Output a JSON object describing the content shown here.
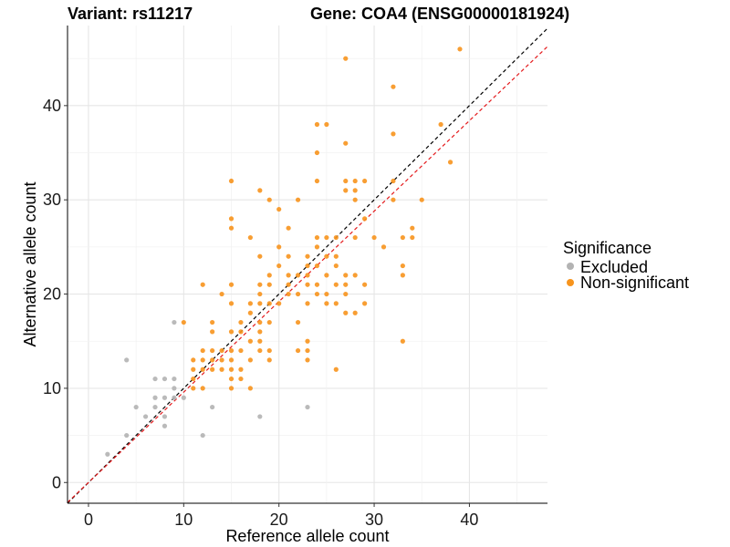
{
  "chart_data": {
    "type": "scatter",
    "title_left": "Variant: rs11217",
    "title_right": "Gene: COA4 (ENSG00000181924)",
    "xlabel": "Reference allele count",
    "ylabel": "Alternative allele count",
    "xlim": [
      -2.2,
      48.2
    ],
    "ylim": [
      -2.2,
      48.5
    ],
    "xticks": [
      0,
      10,
      20,
      30,
      40
    ],
    "yticks": [
      0,
      10,
      20,
      30,
      40
    ],
    "grid": true,
    "legend": {
      "title": "Significance",
      "position": "right",
      "entries": [
        {
          "label": "Excluded",
          "color": "#b3b3b3"
        },
        {
          "label": "Non-significant",
          "color": "#f7941d"
        }
      ]
    },
    "reference_lines": [
      {
        "name": "identity",
        "slope": 1,
        "intercept": 0,
        "color": "#000000",
        "style": "dashed"
      },
      {
        "name": "fit",
        "slope": 0.96,
        "intercept": 0,
        "color": "#e41a1c",
        "style": "dashed"
      }
    ],
    "series": [
      {
        "name": "Excluded",
        "color": "#b3b3b3",
        "points": [
          [
            2,
            3
          ],
          [
            4,
            5
          ],
          [
            4,
            13
          ],
          [
            5,
            8
          ],
          [
            6,
            7
          ],
          [
            7,
            8
          ],
          [
            7,
            9
          ],
          [
            7,
            11
          ],
          [
            8,
            6
          ],
          [
            8,
            7
          ],
          [
            8,
            9
          ],
          [
            8,
            11
          ],
          [
            9,
            9
          ],
          [
            9,
            10
          ],
          [
            9,
            11
          ],
          [
            9,
            17
          ],
          [
            10,
            9
          ],
          [
            12,
            5
          ],
          [
            13,
            8
          ],
          [
            18,
            7
          ],
          [
            23,
            8
          ]
        ]
      },
      {
        "name": "Non-significant",
        "color": "#f7941d",
        "points": [
          [
            10,
            17
          ],
          [
            11,
            10
          ],
          [
            11,
            11
          ],
          [
            11,
            12
          ],
          [
            11,
            13
          ],
          [
            12,
            10
          ],
          [
            12,
            12
          ],
          [
            12,
            13
          ],
          [
            12,
            14
          ],
          [
            12,
            21
          ],
          [
            13,
            12
          ],
          [
            13,
            13
          ],
          [
            13,
            14
          ],
          [
            13,
            16
          ],
          [
            13,
            17
          ],
          [
            14,
            12
          ],
          [
            14,
            13
          ],
          [
            14,
            14
          ],
          [
            14,
            20
          ],
          [
            15,
            10
          ],
          [
            15,
            11
          ],
          [
            15,
            12
          ],
          [
            15,
            13
          ],
          [
            15,
            14
          ],
          [
            15,
            16
          ],
          [
            15,
            19
          ],
          [
            15,
            21
          ],
          [
            15,
            27
          ],
          [
            15,
            28
          ],
          [
            15,
            32
          ],
          [
            16,
            11
          ],
          [
            16,
            12
          ],
          [
            16,
            14
          ],
          [
            16,
            16
          ],
          [
            16,
            17
          ],
          [
            17,
            10
          ],
          [
            17,
            13
          ],
          [
            17,
            15
          ],
          [
            17,
            18
          ],
          [
            17,
            19
          ],
          [
            17,
            26
          ],
          [
            18,
            14
          ],
          [
            18,
            15
          ],
          [
            18,
            16
          ],
          [
            18,
            17
          ],
          [
            18,
            19
          ],
          [
            18,
            20
          ],
          [
            18,
            21
          ],
          [
            18,
            24
          ],
          [
            18,
            31
          ],
          [
            19,
            13
          ],
          [
            19,
            14
          ],
          [
            19,
            17
          ],
          [
            19,
            19
          ],
          [
            19,
            21
          ],
          [
            19,
            22
          ],
          [
            19,
            30
          ],
          [
            20,
            19
          ],
          [
            20,
            23
          ],
          [
            20,
            25
          ],
          [
            20,
            29
          ],
          [
            21,
            20
          ],
          [
            21,
            21
          ],
          [
            21,
            22
          ],
          [
            21,
            24
          ],
          [
            21,
            27
          ],
          [
            22,
            14
          ],
          [
            22,
            17
          ],
          [
            22,
            20
          ],
          [
            22,
            22
          ],
          [
            22,
            30
          ],
          [
            23,
            13
          ],
          [
            23,
            14
          ],
          [
            23,
            15
          ],
          [
            23,
            19
          ],
          [
            23,
            21
          ],
          [
            23,
            22
          ],
          [
            23,
            23
          ],
          [
            23,
            24
          ],
          [
            24,
            20
          ],
          [
            24,
            21
          ],
          [
            24,
            23
          ],
          [
            24,
            25
          ],
          [
            24,
            26
          ],
          [
            24,
            32
          ],
          [
            24,
            35
          ],
          [
            24,
            38
          ],
          [
            25,
            19
          ],
          [
            25,
            20
          ],
          [
            25,
            22
          ],
          [
            25,
            24
          ],
          [
            25,
            26
          ],
          [
            25,
            38
          ],
          [
            26,
            12
          ],
          [
            26,
            19
          ],
          [
            26,
            21
          ],
          [
            26,
            23
          ],
          [
            26,
            24
          ],
          [
            26,
            26
          ],
          [
            27,
            18
          ],
          [
            27,
            20
          ],
          [
            27,
            21
          ],
          [
            27,
            22
          ],
          [
            27,
            31
          ],
          [
            27,
            32
          ],
          [
            27,
            36
          ],
          [
            27,
            45
          ],
          [
            28,
            18
          ],
          [
            28,
            22
          ],
          [
            28,
            26
          ],
          [
            28,
            30
          ],
          [
            28,
            31
          ],
          [
            28,
            32
          ],
          [
            29,
            19
          ],
          [
            29,
            21
          ],
          [
            29,
            28
          ],
          [
            29,
            32
          ],
          [
            30,
            26
          ],
          [
            31,
            25
          ],
          [
            32,
            30
          ],
          [
            32,
            32
          ],
          [
            32,
            37
          ],
          [
            32,
            42
          ],
          [
            33,
            15
          ],
          [
            33,
            22
          ],
          [
            33,
            23
          ],
          [
            33,
            26
          ],
          [
            34,
            26
          ],
          [
            34,
            27
          ],
          [
            35,
            30
          ],
          [
            37,
            38
          ],
          [
            38,
            34
          ],
          [
            39,
            46
          ]
        ]
      }
    ]
  }
}
